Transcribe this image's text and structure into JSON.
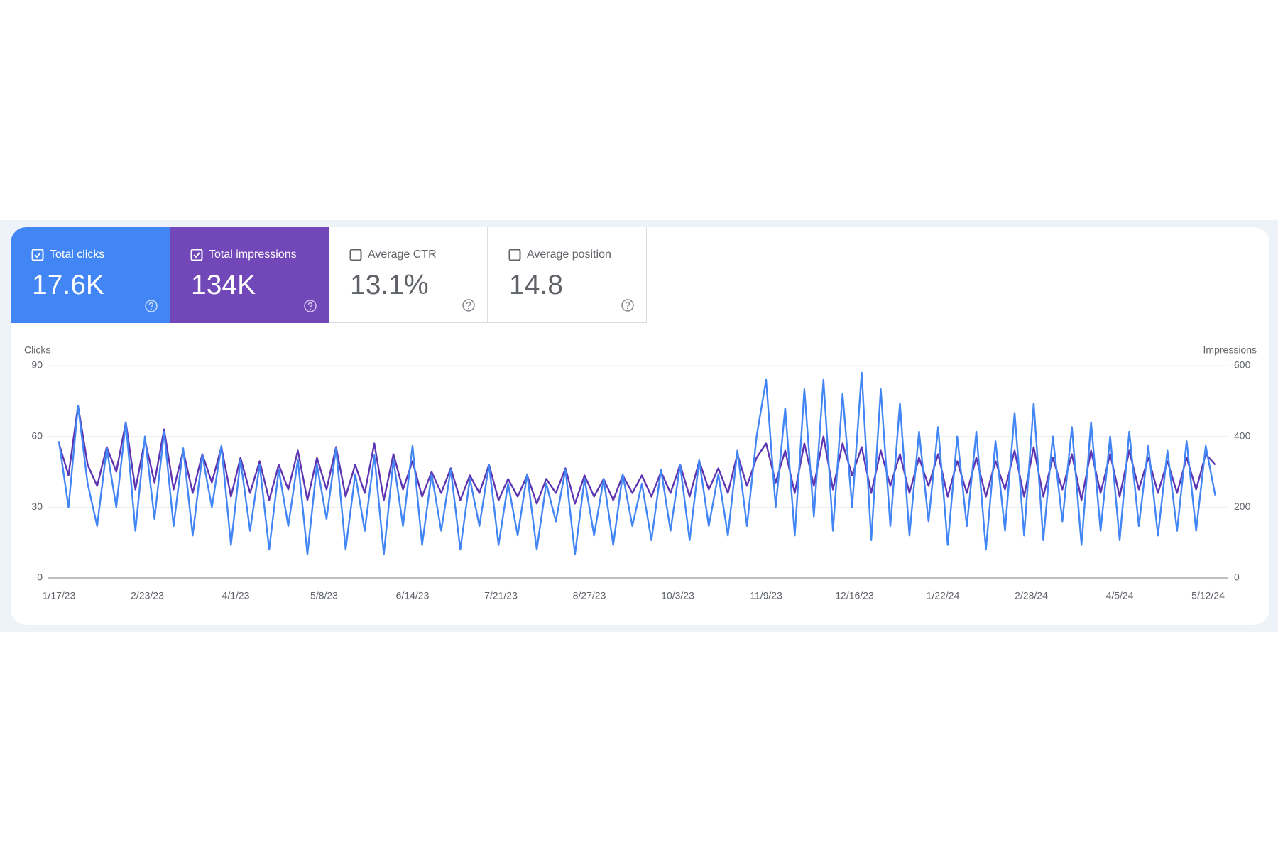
{
  "metrics": [
    {
      "label": "Total clicks",
      "value": "17.6K"
    },
    {
      "label": "Total impressions",
      "value": "134K"
    },
    {
      "label": "Average CTR",
      "value": "13.1%"
    },
    {
      "label": "Average position",
      "value": "14.8"
    }
  ],
  "chart_data": {
    "type": "line",
    "y_label": "Clicks",
    "y2_label": "Impressions",
    "x": [
      "1/17/23",
      "1/21/23",
      "1/25/23",
      "1/29/23",
      "2/2/23",
      "2/6/23",
      "2/10/23",
      "2/14/23",
      "2/18/23",
      "2/22/23",
      "2/26/23",
      "3/2/23",
      "3/6/23",
      "3/10/23",
      "3/14/23",
      "3/18/23",
      "3/22/23",
      "3/26/23",
      "3/30/23",
      "4/3/23",
      "4/7/23",
      "4/11/23",
      "4/15/23",
      "4/19/23",
      "4/23/23",
      "4/27/23",
      "5/1/23",
      "5/5/23",
      "5/9/23",
      "5/13/23",
      "5/17/23",
      "5/21/23",
      "5/25/23",
      "5/29/23",
      "6/2/23",
      "6/6/23",
      "6/10/23",
      "6/14/23",
      "6/18/23",
      "6/22/23",
      "6/26/23",
      "6/30/23",
      "7/4/23",
      "7/8/23",
      "7/12/23",
      "7/16/23",
      "7/20/23",
      "7/24/23",
      "7/28/23",
      "8/1/23",
      "8/5/23",
      "8/9/23",
      "8/13/23",
      "8/17/23",
      "8/21/23",
      "8/25/23",
      "8/29/23",
      "9/2/23",
      "9/6/23",
      "9/10/23",
      "9/14/23",
      "9/18/23",
      "9/22/23",
      "9/26/23",
      "9/30/23",
      "10/4/23",
      "10/8/23",
      "10/12/23",
      "10/16/23",
      "10/20/23",
      "10/24/23",
      "10/28/23",
      "11/1/23",
      "11/5/23",
      "11/9/23",
      "11/13/23",
      "11/17/23",
      "11/21/23",
      "11/25/23",
      "11/29/23",
      "12/3/23",
      "12/7/23",
      "12/11/23",
      "12/15/23",
      "12/19/23",
      "12/23/23",
      "12/27/23",
      "12/31/23",
      "1/4/24",
      "1/8/24",
      "1/12/24",
      "1/16/24",
      "1/20/24",
      "1/24/24",
      "1/28/24",
      "2/1/24",
      "2/5/24",
      "2/9/24",
      "2/13/24",
      "2/17/24",
      "2/21/24",
      "2/25/24",
      "2/29/24",
      "3/4/24",
      "3/8/24",
      "3/12/24",
      "3/16/24",
      "3/20/24",
      "3/24/24",
      "3/28/24",
      "4/1/24",
      "4/5/24",
      "4/9/24",
      "4/13/24",
      "4/17/24",
      "4/21/24",
      "4/25/24",
      "4/29/24",
      "5/3/24",
      "5/7/24",
      "5/11/24",
      "5/15/24"
    ],
    "series": [
      {
        "name": "Impressions",
        "axis": "y2",
        "color": "#5e35b1",
        "values": [
          380,
          290,
          487,
          320,
          260,
          370,
          300,
          440,
          250,
          390,
          270,
          420,
          250,
          360,
          240,
          350,
          270,
          370,
          230,
          340,
          240,
          330,
          220,
          320,
          250,
          360,
          220,
          340,
          250,
          370,
          230,
          320,
          240,
          380,
          220,
          350,
          250,
          330,
          230,
          300,
          240,
          310,
          220,
          290,
          240,
          320,
          220,
          280,
          230,
          290,
          210,
          280,
          240,
          310,
          210,
          290,
          230,
          280,
          220,
          290,
          240,
          290,
          230,
          300,
          240,
          320,
          230,
          330,
          250,
          310,
          240,
          350,
          260,
          340,
          380,
          270,
          360,
          240,
          380,
          260,
          400,
          250,
          380,
          290,
          370,
          240,
          360,
          260,
          350,
          240,
          340,
          260,
          350,
          230,
          330,
          240,
          340,
          230,
          330,
          250,
          360,
          230,
          370,
          230,
          340,
          250,
          350,
          220,
          360,
          240,
          350,
          230,
          360,
          250,
          340,
          240,
          330,
          240,
          340,
          250,
          350,
          320
        ]
      },
      {
        "name": "Clicks",
        "color": "#4285f4",
        "values": [
          58,
          30,
          73,
          40,
          22,
          55,
          30,
          66,
          20,
          60,
          25,
          62,
          22,
          55,
          18,
          52,
          30,
          56,
          14,
          50,
          20,
          48,
          12,
          46,
          22,
          50,
          10,
          48,
          25,
          55,
          12,
          44,
          20,
          52,
          10,
          50,
          22,
          56,
          14,
          44,
          20,
          46,
          12,
          42,
          22,
          48,
          14,
          40,
          18,
          44,
          12,
          40,
          24,
          46,
          10,
          42,
          18,
          42,
          14,
          44,
          22,
          40,
          16,
          46,
          20,
          48,
          16,
          50,
          22,
          44,
          18,
          54,
          22,
          60,
          84,
          30,
          72,
          18,
          80,
          26,
          84,
          20,
          78,
          30,
          87,
          16,
          80,
          22,
          74,
          18,
          62,
          24,
          64,
          14,
          60,
          22,
          62,
          12,
          58,
          20,
          70,
          18,
          74,
          16,
          60,
          24,
          64,
          14,
          66,
          20,
          60,
          16,
          62,
          22,
          56,
          18,
          54,
          20,
          58,
          20,
          56,
          35
        ]
      }
    ],
    "xlim": [
      "1/17/23",
      "5/16/24"
    ],
    "xticks": [
      "1/17/23",
      "2/23/23",
      "4/1/23",
      "5/8/23",
      "6/14/23",
      "7/21/23",
      "8/27/23",
      "10/3/23",
      "11/9/23",
      "12/16/23",
      "1/22/24",
      "2/28/24",
      "4/5/24",
      "5/12/24"
    ],
    "ylim": [
      0,
      90
    ],
    "yticks": [
      0,
      30,
      60,
      90
    ],
    "y2lim": [
      0,
      600
    ],
    "y2ticks": [
      0,
      200,
      400,
      600
    ],
    "grid": true
  }
}
